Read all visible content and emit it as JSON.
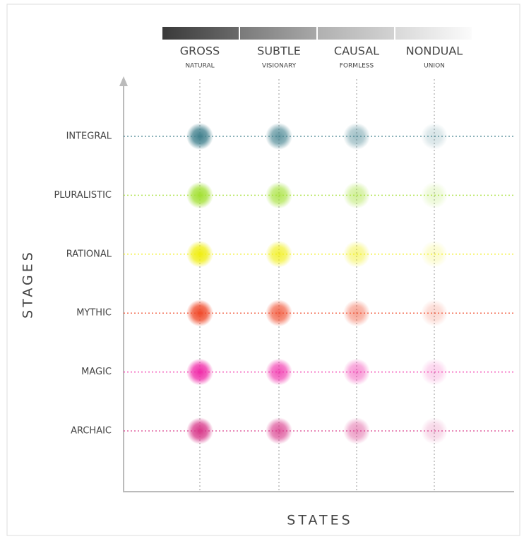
{
  "states": [
    {
      "name": "GROSS",
      "sub": "NATURAL"
    },
    {
      "name": "SUBTLE",
      "sub": "VISIONARY"
    },
    {
      "name": "CAUSAL",
      "sub": "FORMLESS"
    },
    {
      "name": "NONDUAL",
      "sub": "UNION"
    }
  ],
  "stages": [
    {
      "name": "INTEGRAL",
      "color": "#3f7f8c"
    },
    {
      "name": "PLURALISTIC",
      "color": "#a2e032"
    },
    {
      "name": "RATIONAL",
      "color": "#f0ee10"
    },
    {
      "name": "MYTHIC",
      "color": "#f04828"
    },
    {
      "name": "MAGIC",
      "color": "#f02aa8"
    },
    {
      "name": "ARCHAIC",
      "color": "#d8388a"
    }
  ],
  "y_axis_label": "STAGES",
  "x_axis_label": "STATES"
}
